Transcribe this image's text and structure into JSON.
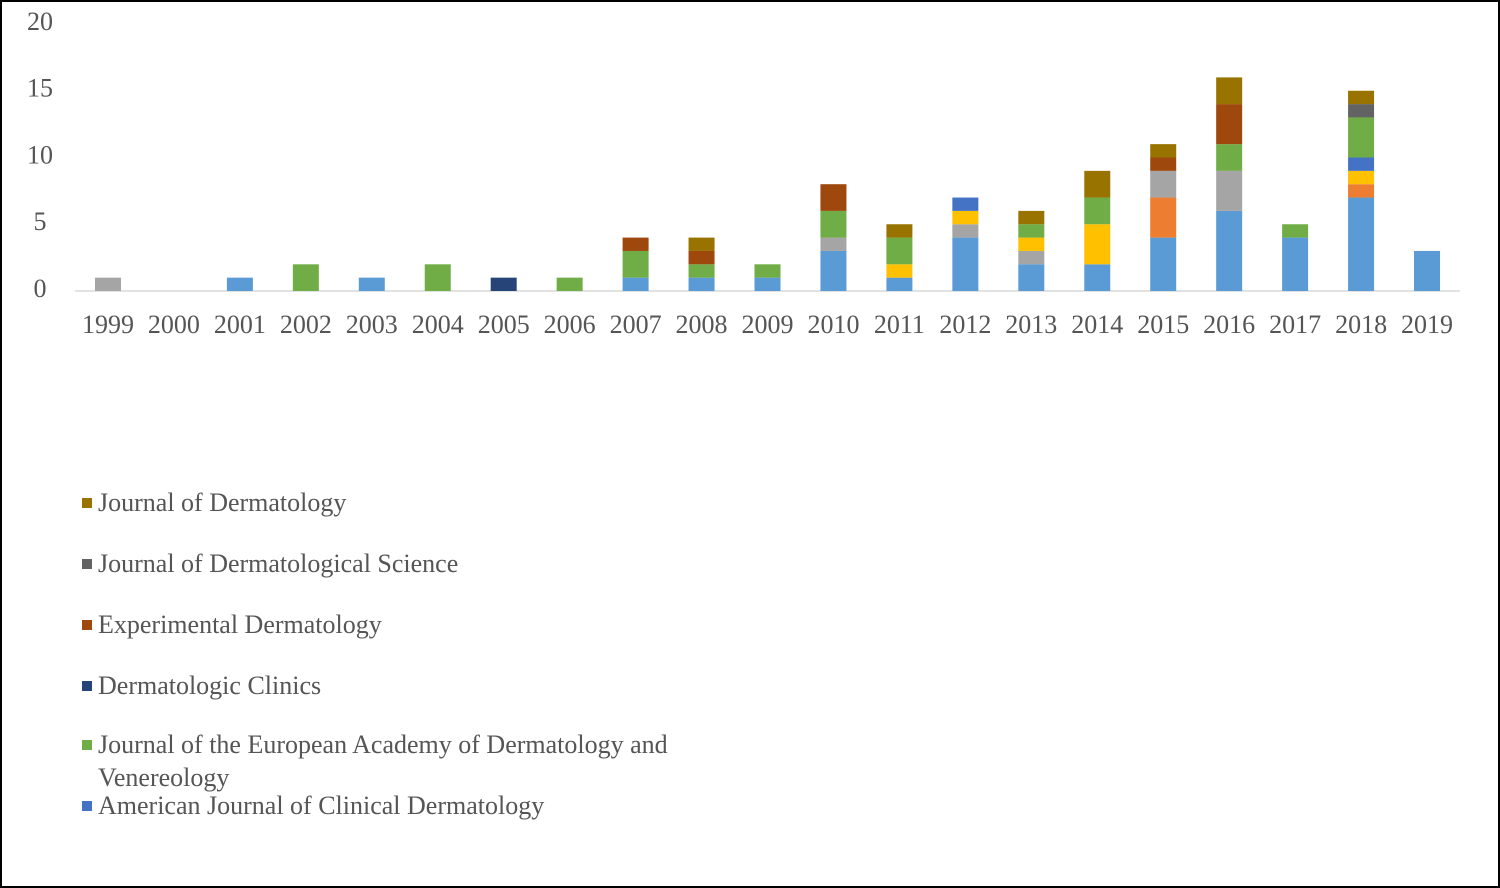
{
  "chart_data": {
    "type": "stacked-bar",
    "categories": [
      "1999",
      "2000",
      "2001",
      "2002",
      "2003",
      "2004",
      "2005",
      "2006",
      "2007",
      "2008",
      "2009",
      "2010",
      "2011",
      "2012",
      "2013",
      "2014",
      "2015",
      "2016",
      "2017",
      "2018",
      "2019"
    ],
    "series": [
      {
        "color": "#5b9bd5",
        "values": [
          0,
          0,
          1,
          0,
          1,
          0,
          0,
          0,
          1,
          1,
          1,
          3,
          1,
          4,
          2,
          2,
          4,
          6,
          4,
          7,
          3
        ]
      },
      {
        "color": "#ed7d31",
        "values": [
          0,
          0,
          0,
          0,
          0,
          0,
          0,
          0,
          0,
          0,
          0,
          0,
          0,
          0,
          0,
          0,
          3,
          0,
          0,
          1,
          0
        ]
      },
      {
        "color": "#a5a5a5",
        "values": [
          1,
          0,
          0,
          0,
          0,
          0,
          0,
          0,
          0,
          0,
          0,
          1,
          0,
          1,
          1,
          0,
          2,
          3,
          0,
          0,
          0
        ]
      },
      {
        "color": "#ffc000",
        "values": [
          0,
          0,
          0,
          0,
          0,
          0,
          0,
          0,
          0,
          0,
          0,
          0,
          1,
          1,
          1,
          3,
          0,
          0,
          0,
          1,
          0
        ]
      },
      {
        "name": "American Journal of Clinical Dermatology",
        "color": "#4472c4",
        "values": [
          0,
          0,
          0,
          0,
          0,
          0,
          0,
          0,
          0,
          0,
          0,
          0,
          0,
          1,
          0,
          0,
          0,
          0,
          0,
          1,
          0
        ]
      },
      {
        "name": "Journal of the European Academy of Dermatology and Venereology",
        "color": "#70ad47",
        "values": [
          0,
          0,
          0,
          2,
          0,
          2,
          0,
          1,
          2,
          1,
          1,
          2,
          2,
          0,
          1,
          2,
          0,
          2,
          1,
          3,
          0
        ]
      },
      {
        "name": "Dermatologic Clinics",
        "color": "#264478",
        "values": [
          0,
          0,
          0,
          0,
          0,
          0,
          1,
          0,
          0,
          0,
          0,
          0,
          0,
          0,
          0,
          0,
          0,
          0,
          0,
          0,
          0
        ]
      },
      {
        "name": "Experimental Dermatology",
        "color": "#9e480e",
        "values": [
          0,
          0,
          0,
          0,
          0,
          0,
          0,
          0,
          1,
          1,
          0,
          2,
          0,
          0,
          0,
          0,
          1,
          3,
          0,
          0,
          0
        ]
      },
      {
        "name": "Journal of Dermatological Science",
        "color": "#636363",
        "values": [
          0,
          0,
          0,
          0,
          0,
          0,
          0,
          0,
          0,
          0,
          0,
          0,
          0,
          0,
          0,
          0,
          0,
          0,
          0,
          1,
          0
        ]
      },
      {
        "name": "Journal of Dermatology",
        "color": "#997300",
        "values": [
          0,
          0,
          0,
          0,
          0,
          0,
          0,
          0,
          0,
          1,
          0,
          0,
          1,
          0,
          1,
          2,
          1,
          2,
          0,
          1,
          0
        ]
      }
    ],
    "ylim": [
      0,
      20
    ],
    "yticks": [
      0,
      5,
      10,
      15,
      20
    ],
    "grid": false
  }
}
